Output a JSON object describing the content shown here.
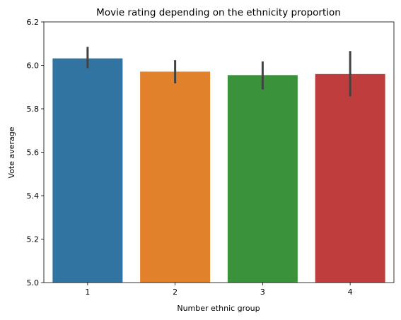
{
  "chart_data": {
    "type": "bar",
    "title": "Movie rating depending on the ethnicity proportion",
    "xlabel": "Number ethnic group",
    "ylabel": "Vote average",
    "categories": [
      "1",
      "2",
      "3",
      "4"
    ],
    "values": [
      6.032,
      5.971,
      5.955,
      5.96
    ],
    "errors_low": [
      5.987,
      5.917,
      5.889,
      5.857
    ],
    "errors_high": [
      6.085,
      6.024,
      6.018,
      6.066
    ],
    "colors": [
      "#3274a1",
      "#e1812c",
      "#3a923a",
      "#c03d3e"
    ],
    "error_color": "#424242",
    "ylim": [
      5.0,
      6.2
    ],
    "yticks": [
      5.0,
      5.2,
      5.4,
      5.6,
      5.8,
      6.0,
      6.2
    ],
    "ytick_labels": [
      "5.0",
      "5.2",
      "5.4",
      "5.6",
      "5.8",
      "6.0",
      "6.2"
    ],
    "grid": false,
    "legend": "none"
  }
}
